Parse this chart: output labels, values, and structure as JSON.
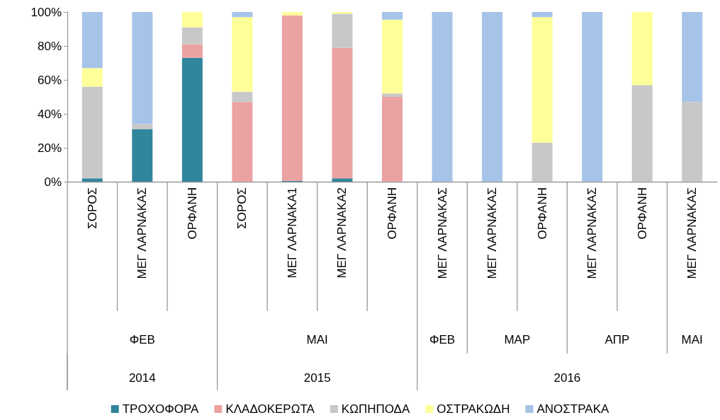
{
  "chart_data": {
    "type": "bar",
    "stacked": true,
    "categories": [
      "ΣΟΡΟΣ",
      "ΜΕΓ ΛΑΡΝΑΚΑΣ",
      "ΟΡΦΑΝΗ",
      "ΣΟΡΟΣ",
      "ΜΕΓ ΛΑΡΝΑΚΑ1",
      "ΜΕΓ ΛΑΡΝΑΚΑ2",
      "ΟΡΦΑΝΗ",
      "ΜΕΓ ΛΑΡΝΑΚΑΣ",
      "ΜΕΓ ΛΑΡΝΑΚΑΣ",
      "ΟΡΦΑΝΗ",
      "ΜΕΓ ΛΑΡΝΑΚΑΣ",
      "ΟΡΦΑΝΗ",
      "ΜΕΓ ΛΑΡΝΑΚΑΣ"
    ],
    "series": [
      {
        "name": "ΤΡΟΧΟΦΟΡΑ",
        "color": "#31859c",
        "values": [
          2,
          31,
          73,
          0,
          0.5,
          2,
          0,
          0,
          0,
          0,
          0,
          0,
          0
        ]
      },
      {
        "name": "ΚΛΑΔΟΚΕΡΩΤΑ",
        "color": "#eba2a2",
        "values": [
          0,
          0,
          8,
          47,
          97.5,
          77,
          50,
          0,
          0,
          0,
          0,
          0,
          0
        ]
      },
      {
        "name": "ΚΩΠΗΠΟΔΑ",
        "color": "#c8c8c8",
        "values": [
          54,
          3,
          10,
          6,
          0,
          20,
          2,
          0,
          0,
          23,
          0,
          57,
          47
        ]
      },
      {
        "name": "ΟΣΤΡΑΚΩΔΗ",
        "color": "#ffff99",
        "values": [
          11,
          0,
          9,
          44,
          2,
          1,
          43.5,
          0,
          0,
          74,
          0,
          43,
          0
        ]
      },
      {
        "name": "ΑΝΟΣΤΡΑΚΑ",
        "color": "#a6c3e8",
        "values": [
          33,
          66,
          0,
          3,
          0,
          0,
          4.5,
          100,
          100,
          3,
          100,
          0,
          53
        ]
      }
    ],
    "ylim": [
      0,
      100
    ],
    "yticks": [
      {
        "value": 0,
        "label": "0%"
      },
      {
        "value": 20,
        "label": "20%"
      },
      {
        "value": 40,
        "label": "40%"
      },
      {
        "value": 60,
        "label": "60%"
      },
      {
        "value": 80,
        "label": "80%"
      },
      {
        "value": 100,
        "label": "100%"
      }
    ],
    "annotations": [
      "ΦΕΒ",
      "ΜΑΙ",
      "ΦΕΒ",
      "ΜΑΡ",
      "ΑΠΡ",
      "ΜΑΙ",
      "2014",
      "2015",
      "2016"
    ],
    "grid": false,
    "legend": "bottom"
  }
}
